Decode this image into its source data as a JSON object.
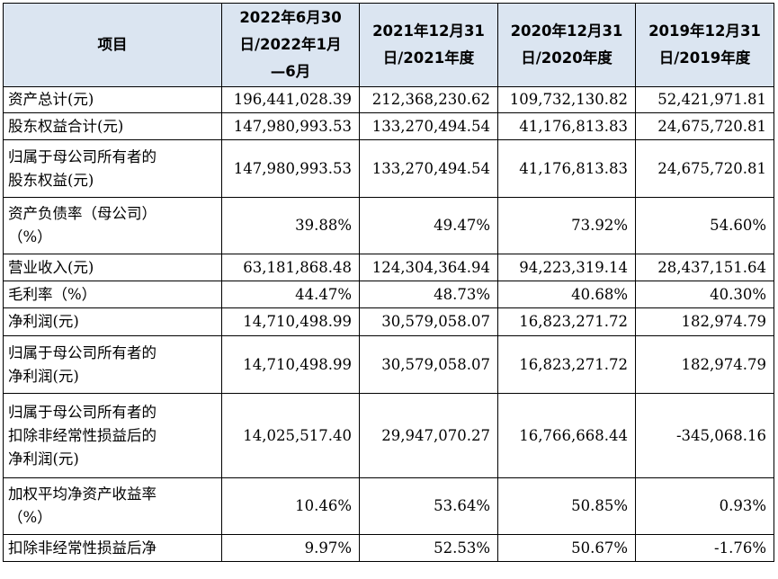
{
  "table": {
    "headers": [
      "项目",
      "2022年6月30\n日/2022年1月\n—6月",
      "2021年12月31\n日/2021年度",
      "2020年12月31\n日/2020年度",
      "2019年12月31\n日/2019年度"
    ],
    "rows": [
      {
        "label": "资产总计(元)",
        "values": [
          "196,441,028.39",
          "212,368,230.62",
          "109,732,130.82",
          "52,421,971.81"
        ]
      },
      {
        "label": "股东权益合计(元)",
        "values": [
          "147,980,993.53",
          "133,270,494.54",
          "41,176,813.83",
          "24,675,720.81"
        ]
      },
      {
        "label": "归属于母公司所有者的\n股东权益(元)",
        "values": [
          "147,980,993.53",
          "133,270,494.54",
          "41,176,813.83",
          "24,675,720.81"
        ]
      },
      {
        "label": "资产负债率（母公司）\n（%）",
        "values": [
          "39.88%",
          "49.47%",
          "73.92%",
          "54.60%"
        ]
      },
      {
        "label": "营业收入(元)",
        "values": [
          "63,181,868.48",
          "124,304,364.94",
          "94,223,319.14",
          "28,437,151.64"
        ]
      },
      {
        "label": "毛利率（%）",
        "values": [
          "44.47%",
          "48.73%",
          "40.68%",
          "40.30%"
        ]
      },
      {
        "label": "净利润(元)",
        "values": [
          "14,710,498.99",
          "30,579,058.07",
          "16,823,271.72",
          "182,974.79"
        ]
      },
      {
        "label": "归属于母公司所有者的\n净利润(元)",
        "values": [
          "14,710,498.99",
          "30,579,058.07",
          "16,823,271.72",
          "182,974.79"
        ]
      },
      {
        "label": "归属于母公司所有者的\n扣除非经常性损益后的\n净利润(元)",
        "values": [
          "14,025,517.40",
          "29,947,070.27",
          "16,766,668.44",
          "-345,068.16"
        ]
      },
      {
        "label": "加权平均净资产收益率\n（%）",
        "values": [
          "10.46%",
          "53.64%",
          "50.85%",
          "0.93%"
        ]
      },
      {
        "label": "扣除非经常性损益后净",
        "values": [
          "9.97%",
          "52.53%",
          "50.67%",
          "-1.76%"
        ]
      }
    ]
  }
}
